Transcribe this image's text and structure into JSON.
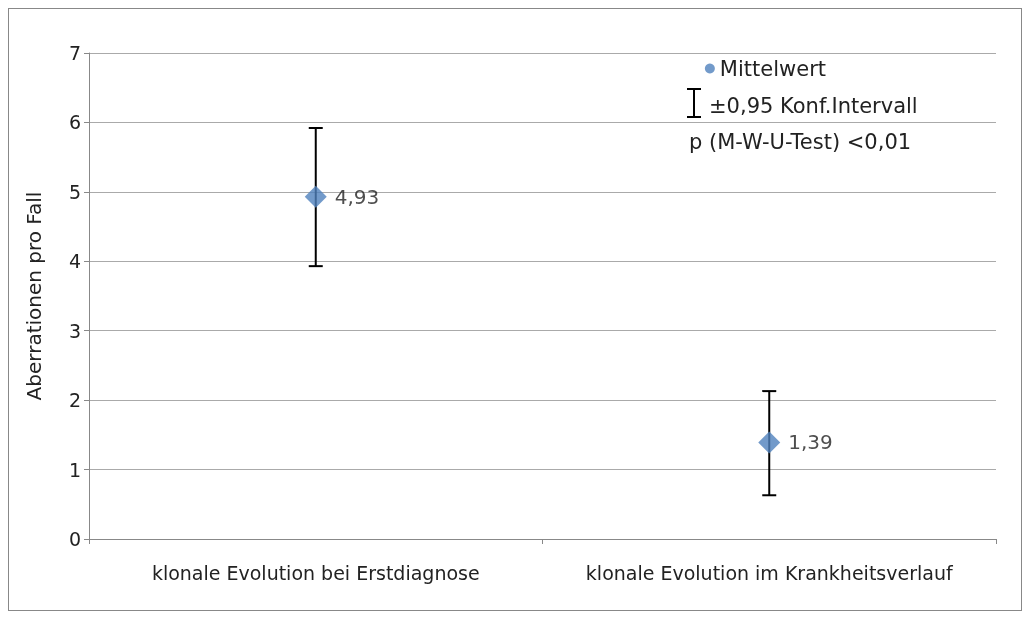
{
  "chart_data": {
    "type": "scatter",
    "ylabel": "Aberrationen pro Fall",
    "categories": [
      "klonale Evolution bei Erstdiagnose",
      "klonale Evolution im Krankheitsverlauf"
    ],
    "series": [
      {
        "name": "Mittelwert",
        "color": "#4f81bd",
        "values": [
          4.93,
          1.39
        ],
        "errors": [
          [
            3.93,
            5.92
          ],
          [
            0.63,
            2.13
          ]
        ],
        "value_labels": [
          "4,93",
          "1,39"
        ]
      }
    ],
    "ylim": [
      0,
      7
    ],
    "yticks": [
      0,
      1,
      2,
      3,
      4,
      5,
      6,
      7
    ],
    "grid": "y",
    "legend": "top right",
    "marker": "diamond",
    "annotations": [
      "±0,95 Konf.Intervall",
      "p (M-W-U-Test) <0,01"
    ]
  }
}
